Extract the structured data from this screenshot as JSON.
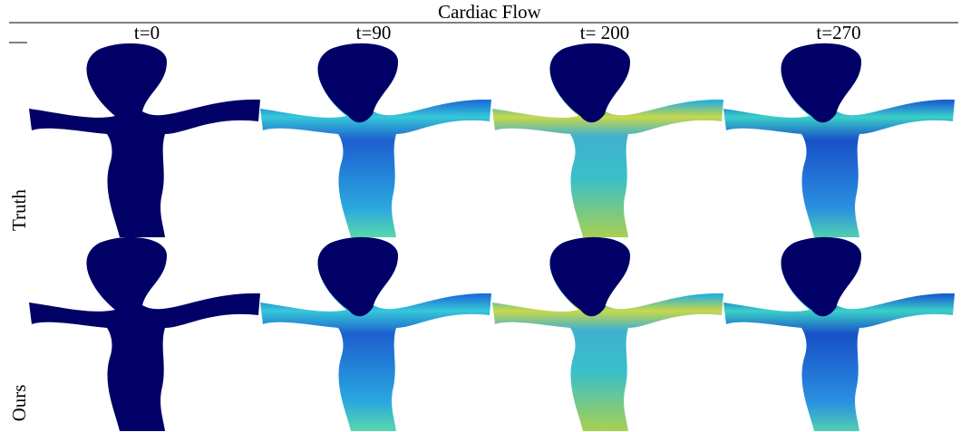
{
  "title": "Cardiac Flow",
  "columns": [
    "t=0",
    "t=90",
    "t= 200",
    "t=270"
  ],
  "rows": [
    "Truth",
    "Ours"
  ]
}
